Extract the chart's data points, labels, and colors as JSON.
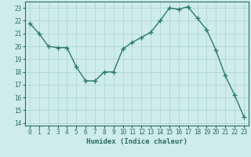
{
  "title": "",
  "xlabel": "Humidex (Indice chaleur)",
  "ylabel": "",
  "x": [
    0,
    1,
    2,
    3,
    4,
    5,
    6,
    7,
    8,
    9,
    10,
    11,
    12,
    13,
    14,
    15,
    16,
    17,
    18,
    19,
    20,
    21,
    22,
    23
  ],
  "y": [
    21.8,
    21.0,
    20.0,
    19.9,
    19.9,
    18.4,
    17.3,
    17.3,
    18.0,
    18.0,
    19.8,
    20.3,
    20.7,
    21.1,
    22.0,
    23.0,
    22.9,
    23.1,
    22.2,
    21.3,
    19.7,
    17.7,
    16.2,
    14.5
  ],
  "line_color": "#2d7a6e",
  "marker": "+",
  "markersize": 4,
  "linewidth": 1.0,
  "bg_color": "#ceecea",
  "grid_color": "#b0d8d4",
  "ylim": [
    13.8,
    23.5
  ],
  "yticks": [
    14,
    15,
    16,
    17,
    18,
    19,
    20,
    21,
    22,
    23
  ],
  "xticks": [
    0,
    1,
    2,
    3,
    4,
    5,
    6,
    7,
    8,
    9,
    10,
    11,
    12,
    13,
    14,
    15,
    16,
    17,
    18,
    19,
    20,
    21,
    22,
    23
  ],
  "tick_fontsize": 5.5,
  "xlabel_fontsize": 6.5,
  "tick_color": "#2d6b62",
  "spine_color": "#2d6b62"
}
